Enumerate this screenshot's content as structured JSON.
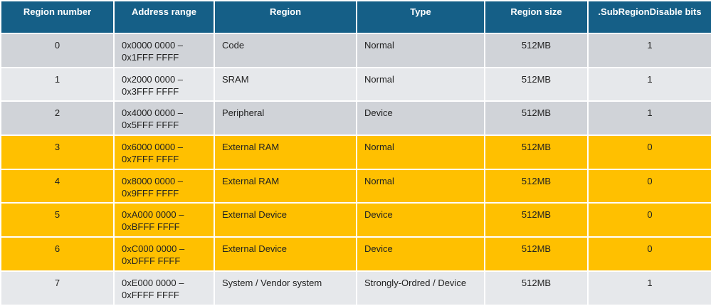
{
  "table": {
    "header": [
      "Region number",
      "Address range",
      "Region",
      "Type",
      "Region size",
      ".SubRegionDisable bits"
    ],
    "rows": [
      [
        "0",
        "0x0000 0000 –\n0x1FFF FFFF",
        "Code",
        "Normal",
        "512MB",
        "1"
      ],
      [
        "1",
        "0x2000 0000 –\n0x3FFF FFFF",
        "SRAM",
        "Normal",
        "512MB",
        "1"
      ],
      [
        "2",
        "0x4000 0000 –\n0x5FFF FFFF",
        "Peripheral",
        "Device",
        "512MB",
        "1"
      ],
      [
        "3",
        "0x6000 0000 –\n0x7FFF FFFF",
        "External RAM",
        "Normal",
        "512MB",
        "0"
      ],
      [
        "4",
        "0x8000 0000 –\n0x9FFF FFFF",
        "External RAM",
        "Normal",
        "512MB",
        "0"
      ],
      [
        "5",
        "0xA000 0000 –\n0xBFFF FFFF",
        "External Device",
        "Device",
        "512MB",
        "0"
      ],
      [
        "6",
        "0xC000 0000 –\n0xDFFF FFFF",
        "External Device",
        "Device",
        "512MB",
        "0"
      ],
      [
        "7",
        "0xE000 0000 –\n0xFFFF FFFF",
        "System / Vendor system",
        "Strongly-Ordred / Device",
        "512MB",
        "1"
      ]
    ],
    "header_color": "#155f87",
    "row_colors": [
      "#d0d3d8",
      "#e6e8eb",
      "#d0d3d8",
      "#ffc000",
      "#ffc000",
      "#ffc000",
      "#ffc000",
      "#e6e8eb"
    ]
  }
}
